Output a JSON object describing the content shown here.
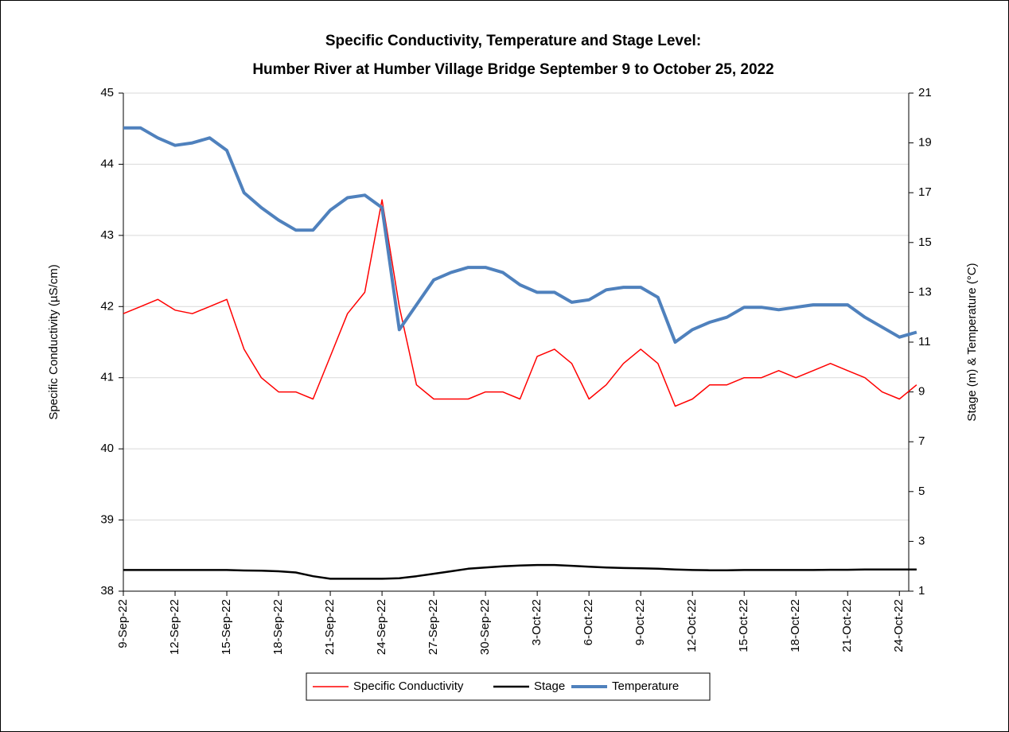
{
  "chart_data": {
    "type": "line",
    "title": [
      "Specific Conductivity, Temperature and Stage Level:",
      "Humber River at Humber Village Bridge September 9 to October 25, 2022"
    ],
    "ylabel": "Specific Conductivity (µS/cm)",
    "y2label": "Stage (m) & Temperature (°C)",
    "x": [
      "2022-09-09",
      "2022-09-10",
      "2022-09-11",
      "2022-09-12",
      "2022-09-13",
      "2022-09-14",
      "2022-09-15",
      "2022-09-16",
      "2022-09-17",
      "2022-09-18",
      "2022-09-19",
      "2022-09-20",
      "2022-09-21",
      "2022-09-22",
      "2022-09-23",
      "2022-09-24",
      "2022-09-25",
      "2022-09-26",
      "2022-09-27",
      "2022-09-28",
      "2022-09-29",
      "2022-09-30",
      "2022-10-01",
      "2022-10-02",
      "2022-10-03",
      "2022-10-04",
      "2022-10-05",
      "2022-10-06",
      "2022-10-07",
      "2022-10-08",
      "2022-10-09",
      "2022-10-10",
      "2022-10-11",
      "2022-10-12",
      "2022-10-13",
      "2022-10-14",
      "2022-10-15",
      "2022-10-16",
      "2022-10-17",
      "2022-10-18",
      "2022-10-19",
      "2022-10-20",
      "2022-10-21",
      "2022-10-22",
      "2022-10-23",
      "2022-10-24",
      "2022-10-25"
    ],
    "xlim": [
      "2022-09-09",
      "2022-10-24T13:00"
    ],
    "xticks": [
      {
        "value": "2022-09-09",
        "label": "9-Sep-22"
      },
      {
        "value": "2022-09-12",
        "label": "12-Sep-22"
      },
      {
        "value": "2022-09-15",
        "label": "15-Sep-22"
      },
      {
        "value": "2022-09-18",
        "label": "18-Sep-22"
      },
      {
        "value": "2022-09-21",
        "label": "21-Sep-22"
      },
      {
        "value": "2022-09-24",
        "label": "24-Sep-22"
      },
      {
        "value": "2022-09-27",
        "label": "27-Sep-22"
      },
      {
        "value": "2022-09-30",
        "label": "30-Sep-22"
      },
      {
        "value": "2022-10-03",
        "label": "3-Oct-22"
      },
      {
        "value": "2022-10-06",
        "label": "6-Oct-22"
      },
      {
        "value": "2022-10-09",
        "label": "9-Oct-22"
      },
      {
        "value": "2022-10-12",
        "label": "12-Oct-22"
      },
      {
        "value": "2022-10-15",
        "label": "15-Oct-22"
      },
      {
        "value": "2022-10-18",
        "label": "18-Oct-22"
      },
      {
        "value": "2022-10-21",
        "label": "21-Oct-22"
      },
      {
        "value": "2022-10-24",
        "label": "24-Oct-22"
      }
    ],
    "ylim": [
      38,
      45
    ],
    "yticks": [
      38,
      39,
      40,
      41,
      42,
      43,
      44,
      45
    ],
    "y2lim": [
      1,
      21
    ],
    "y2ticks": [
      1,
      3,
      5,
      7,
      9,
      11,
      13,
      15,
      17,
      19,
      21
    ],
    "grid": true,
    "legend": "bottom",
    "series": [
      {
        "name": "Specific Conductivity",
        "color": "#ff0000",
        "axis": "y",
        "values": [
          41.9,
          42.0,
          42.1,
          41.95,
          41.9,
          42.0,
          42.1,
          41.4,
          41.0,
          40.8,
          40.8,
          40.7,
          41.3,
          41.9,
          42.2,
          43.5,
          42.0,
          40.9,
          40.7,
          40.7,
          40.7,
          40.8,
          40.8,
          40.7,
          41.3,
          41.4,
          41.2,
          40.7,
          40.9,
          41.2,
          41.4,
          41.2,
          40.6,
          40.7,
          40.9,
          40.9,
          41.0,
          41.0,
          41.1,
          41.0,
          41.1,
          41.2,
          41.1,
          41.0,
          40.8,
          40.7,
          40.9
        ]
      },
      {
        "name": "Stage",
        "color": "#000000",
        "axis": "y2",
        "values": [
          1.85,
          1.85,
          1.85,
          1.85,
          1.85,
          1.85,
          1.85,
          1.83,
          1.82,
          1.8,
          1.75,
          1.6,
          1.5,
          1.5,
          1.5,
          1.5,
          1.52,
          1.6,
          1.7,
          1.8,
          1.9,
          1.95,
          2.0,
          2.03,
          2.05,
          2.05,
          2.02,
          1.98,
          1.95,
          1.93,
          1.92,
          1.9,
          1.87,
          1.85,
          1.84,
          1.84,
          1.85,
          1.85,
          1.85,
          1.85,
          1.85,
          1.86,
          1.86,
          1.87,
          1.87,
          1.87,
          1.87
        ]
      },
      {
        "name": "Temperature",
        "color": "#4f81bd",
        "axis": "y2",
        "values": [
          19.6,
          19.6,
          19.2,
          18.9,
          19.0,
          19.2,
          18.7,
          17.0,
          16.4,
          15.9,
          15.5,
          15.5,
          16.3,
          16.8,
          16.9,
          16.4,
          11.5,
          12.5,
          13.5,
          13.8,
          14.0,
          14.0,
          13.8,
          13.3,
          13.0,
          13.0,
          12.6,
          12.7,
          13.1,
          13.2,
          13.2,
          12.8,
          11.0,
          11.5,
          11.8,
          12.0,
          12.4,
          12.4,
          12.3,
          12.4,
          12.5,
          12.5,
          12.5,
          12.0,
          11.6,
          11.2,
          11.4
        ]
      }
    ]
  }
}
